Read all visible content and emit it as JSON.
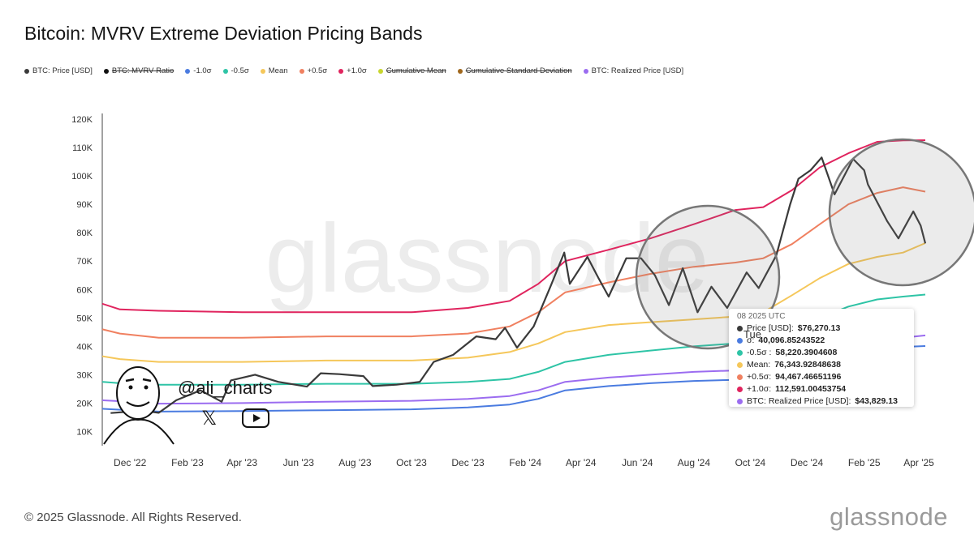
{
  "title": "Bitcoin: MVRV Extreme Deviation Pricing Bands",
  "legend": [
    {
      "label": "BTC: Price [USD]",
      "color": "#3a3a3a",
      "enabled": true
    },
    {
      "label": "BTC: MVRV Ratio",
      "color": "#111111",
      "enabled": false
    },
    {
      "label": "-1.0σ",
      "color": "#4a7be0",
      "enabled": true
    },
    {
      "label": "-0.5σ",
      "color": "#2ec4a6",
      "enabled": true
    },
    {
      "label": "Mean",
      "color": "#f5c75a",
      "enabled": true
    },
    {
      "label": "+0.5σ",
      "color": "#f08060",
      "enabled": true
    },
    {
      "label": "+1.0σ",
      "color": "#e0245e",
      "enabled": true
    },
    {
      "label": "Cumulative Mean",
      "color": "#c8d62e",
      "enabled": false
    },
    {
      "label": "Cumulative Standard Deviation",
      "color": "#a0671c",
      "enabled": false
    },
    {
      "label": "BTC: Realized Price [USD]",
      "color": "#9b6cf0",
      "enabled": true
    }
  ],
  "tooltip": {
    "date": "08 2025 UTC",
    "day": "Tue",
    "rows": [
      {
        "label": "Price [USD]:",
        "value": "$76,270.13",
        "color": "#3a3a3a"
      },
      {
        "label": "σ:",
        "value": "40,096.85243522",
        "color": "#4a7be0"
      },
      {
        "label": "-0.5σ :",
        "value": "58,220.3904608",
        "color": "#2ec4a6"
      },
      {
        "label": "Mean:",
        "value": "76,343.92848638",
        "color": "#f5c75a"
      },
      {
        "label": "+0.5σ:",
        "value": "94,467.46651196",
        "color": "#f08060"
      },
      {
        "label": "+1.0σ:",
        "value": "112,591.00453754",
        "color": "#e0245e"
      },
      {
        "label": "BTC: Realized Price [USD]:",
        "value": "$43,829.13",
        "color": "#9b6cf0"
      }
    ]
  },
  "watermark": "glassnode",
  "handle": "@ali_charts",
  "footer": {
    "copyright": "© 2025 Glassnode. All Rights Reserved.",
    "logo": "glassnode"
  },
  "chart_data": {
    "type": "line",
    "title": "Bitcoin: MVRV Extreme Deviation Pricing Bands",
    "ylim": [
      5000,
      122000
    ],
    "y_ticks": [
      "10K",
      "20K",
      "30K",
      "40K",
      "50K",
      "60K",
      "70K",
      "80K",
      "90K",
      "100K",
      "110K",
      "120K"
    ],
    "y_tick_values": [
      10000,
      20000,
      30000,
      40000,
      50000,
      60000,
      70000,
      80000,
      90000,
      100000,
      110000,
      120000
    ],
    "x_ticks": [
      "Dec '22",
      "Feb '23",
      "Apr '23",
      "Jun '23",
      "Aug '23",
      "Oct '23",
      "Dec '23",
      "Feb '24",
      "Apr '24",
      "Jun '24",
      "Aug '24",
      "Oct '24",
      "Dec '24",
      "Feb '25",
      "Apr '25"
    ],
    "x_tick_dates": [
      "2022-12-01",
      "2023-02-01",
      "2023-04-01",
      "2023-06-01",
      "2023-08-01",
      "2023-10-01",
      "2023-12-01",
      "2024-02-01",
      "2024-04-01",
      "2024-06-01",
      "2024-08-01",
      "2024-10-01",
      "2024-12-01",
      "2025-02-01",
      "2025-04-01"
    ],
    "xlim": [
      "2022-11-01",
      "2025-04-08"
    ],
    "grid": false,
    "series": [
      {
        "name": "+1.0σ",
        "color": "#e0245e",
        "points": [
          [
            "2022-11-01",
            55000
          ],
          [
            "2022-11-20",
            53000
          ],
          [
            "2023-01-01",
            52500
          ],
          [
            "2023-04-01",
            52000
          ],
          [
            "2023-07-01",
            52000
          ],
          [
            "2023-10-01",
            52000
          ],
          [
            "2023-12-01",
            53500
          ],
          [
            "2024-01-15",
            56000
          ],
          [
            "2024-02-15",
            62000
          ],
          [
            "2024-03-15",
            70000
          ],
          [
            "2024-05-01",
            74000
          ],
          [
            "2024-06-15",
            78000
          ],
          [
            "2024-08-01",
            83000
          ],
          [
            "2024-09-15",
            88000
          ],
          [
            "2024-10-15",
            89000
          ],
          [
            "2024-11-15",
            95000
          ],
          [
            "2024-12-15",
            103000
          ],
          [
            "2025-01-15",
            108000
          ],
          [
            "2025-02-15",
            112000
          ],
          [
            "2025-03-15",
            112500
          ],
          [
            "2025-04-08",
            112591
          ]
        ]
      },
      {
        "name": "+0.5σ",
        "color": "#f08060",
        "points": [
          [
            "2022-11-01",
            46000
          ],
          [
            "2022-11-20",
            44500
          ],
          [
            "2023-01-01",
            43000
          ],
          [
            "2023-04-01",
            43000
          ],
          [
            "2023-07-01",
            43500
          ],
          [
            "2023-10-01",
            43500
          ],
          [
            "2023-12-01",
            44500
          ],
          [
            "2024-01-15",
            47000
          ],
          [
            "2024-02-15",
            52000
          ],
          [
            "2024-03-15",
            59000
          ],
          [
            "2024-05-01",
            62500
          ],
          [
            "2024-06-15",
            65500
          ],
          [
            "2024-08-01",
            68000
          ],
          [
            "2024-09-15",
            69500
          ],
          [
            "2024-10-15",
            71000
          ],
          [
            "2024-11-15",
            76000
          ],
          [
            "2024-12-15",
            83000
          ],
          [
            "2025-01-15",
            90000
          ],
          [
            "2025-02-15",
            94000
          ],
          [
            "2025-03-15",
            96000
          ],
          [
            "2025-04-08",
            94467
          ]
        ]
      },
      {
        "name": "Mean",
        "color": "#f5c75a",
        "points": [
          [
            "2022-11-01",
            36500
          ],
          [
            "2022-11-20",
            35500
          ],
          [
            "2023-01-01",
            34500
          ],
          [
            "2023-04-01",
            34500
          ],
          [
            "2023-07-01",
            35000
          ],
          [
            "2023-10-01",
            35000
          ],
          [
            "2023-12-01",
            36000
          ],
          [
            "2024-01-15",
            38000
          ],
          [
            "2024-02-15",
            41000
          ],
          [
            "2024-03-15",
            45000
          ],
          [
            "2024-05-01",
            47500
          ],
          [
            "2024-06-15",
            48500
          ],
          [
            "2024-08-01",
            49500
          ],
          [
            "2024-09-15",
            50500
          ],
          [
            "2024-10-15",
            52000
          ],
          [
            "2024-11-15",
            58000
          ],
          [
            "2024-12-15",
            64000
          ],
          [
            "2025-01-15",
            69000
          ],
          [
            "2025-02-15",
            71500
          ],
          [
            "2025-03-15",
            73000
          ],
          [
            "2025-04-08",
            76343
          ]
        ]
      },
      {
        "name": "-0.5σ",
        "color": "#2ec4a6",
        "points": [
          [
            "2022-11-01",
            27500
          ],
          [
            "2022-11-20",
            27000
          ],
          [
            "2023-01-01",
            26500
          ],
          [
            "2023-04-01",
            26500
          ],
          [
            "2023-07-01",
            26800
          ],
          [
            "2023-10-01",
            26800
          ],
          [
            "2023-12-01",
            27500
          ],
          [
            "2024-01-15",
            28500
          ],
          [
            "2024-02-15",
            31000
          ],
          [
            "2024-03-15",
            34500
          ],
          [
            "2024-05-01",
            37000
          ],
          [
            "2024-06-15",
            38500
          ],
          [
            "2024-08-01",
            40000
          ],
          [
            "2024-09-15",
            41000
          ],
          [
            "2024-10-15",
            42500
          ],
          [
            "2024-11-15",
            46000
          ],
          [
            "2024-12-15",
            50000
          ],
          [
            "2025-01-15",
            54000
          ],
          [
            "2025-02-15",
            56500
          ],
          [
            "2025-03-15",
            57500
          ],
          [
            "2025-04-08",
            58220
          ]
        ]
      },
      {
        "name": "BTC: Realized Price [USD]",
        "color": "#9b6cf0",
        "points": [
          [
            "2022-11-01",
            21000
          ],
          [
            "2022-12-01",
            20500
          ],
          [
            "2023-01-01",
            19800
          ],
          [
            "2023-04-01",
            20000
          ],
          [
            "2023-07-01",
            20500
          ],
          [
            "2023-10-01",
            20800
          ],
          [
            "2023-12-01",
            21500
          ],
          [
            "2024-01-15",
            22500
          ],
          [
            "2024-02-15",
            24500
          ],
          [
            "2024-03-15",
            27500
          ],
          [
            "2024-05-01",
            29000
          ],
          [
            "2024-06-15",
            30000
          ],
          [
            "2024-08-01",
            31000
          ],
          [
            "2024-09-15",
            31500
          ],
          [
            "2024-10-15",
            32000
          ],
          [
            "2024-11-15",
            35000
          ],
          [
            "2024-12-15",
            38500
          ],
          [
            "2025-01-15",
            41000
          ],
          [
            "2025-02-15",
            42500
          ],
          [
            "2025-03-15",
            43000
          ],
          [
            "2025-04-08",
            43829
          ]
        ]
      },
      {
        "name": "-1.0σ",
        "color": "#4a7be0",
        "points": [
          [
            "2022-11-01",
            18000
          ],
          [
            "2022-12-01",
            17500
          ],
          [
            "2023-01-01",
            17000
          ],
          [
            "2023-04-01",
            17200
          ],
          [
            "2023-07-01",
            17500
          ],
          [
            "2023-10-01",
            17800
          ],
          [
            "2023-12-01",
            18500
          ],
          [
            "2024-01-15",
            19500
          ],
          [
            "2024-02-15",
            21500
          ],
          [
            "2024-03-15",
            24500
          ],
          [
            "2024-05-01",
            26000
          ],
          [
            "2024-06-15",
            27000
          ],
          [
            "2024-08-01",
            27800
          ],
          [
            "2024-09-15",
            28200
          ],
          [
            "2024-10-15",
            28500
          ],
          [
            "2024-11-15",
            31000
          ],
          [
            "2024-12-15",
            34500
          ],
          [
            "2025-01-15",
            37500
          ],
          [
            "2025-02-15",
            39000
          ],
          [
            "2025-03-15",
            39800
          ],
          [
            "2025-04-08",
            40096
          ]
        ]
      },
      {
        "name": "BTC: Price [USD]",
        "color": "#3a3a3a",
        "points": [
          [
            "2022-11-10",
            16500
          ],
          [
            "2022-12-01",
            17000
          ],
          [
            "2022-12-15",
            17300
          ],
          [
            "2023-01-01",
            16600
          ],
          [
            "2023-01-20",
            21000
          ],
          [
            "2023-02-15",
            24500
          ],
          [
            "2023-03-10",
            20500
          ],
          [
            "2023-03-20",
            28000
          ],
          [
            "2023-04-15",
            30000
          ],
          [
            "2023-05-10",
            27500
          ],
          [
            "2023-06-10",
            25800
          ],
          [
            "2023-06-25",
            30500
          ],
          [
            "2023-07-15",
            30200
          ],
          [
            "2023-08-10",
            29500
          ],
          [
            "2023-08-20",
            26000
          ],
          [
            "2023-09-15",
            26500
          ],
          [
            "2023-10-10",
            27500
          ],
          [
            "2023-10-25",
            34500
          ],
          [
            "2023-11-15",
            37000
          ],
          [
            "2023-12-10",
            43500
          ],
          [
            "2023-12-31",
            42500
          ],
          [
            "2024-01-10",
            46500
          ],
          [
            "2024-01-23",
            39500
          ],
          [
            "2024-02-10",
            47000
          ],
          [
            "2024-02-28",
            61000
          ],
          [
            "2024-03-14",
            73000
          ],
          [
            "2024-03-20",
            62000
          ],
          [
            "2024-04-08",
            71500
          ],
          [
            "2024-04-20",
            64000
          ],
          [
            "2024-05-01",
            57500
          ],
          [
            "2024-05-20",
            71000
          ],
          [
            "2024-06-05",
            71000
          ],
          [
            "2024-06-20",
            65000
          ],
          [
            "2024-07-05",
            54500
          ],
          [
            "2024-07-20",
            67500
          ],
          [
            "2024-08-05",
            52000
          ],
          [
            "2024-08-20",
            61000
          ],
          [
            "2024-09-06",
            53500
          ],
          [
            "2024-09-27",
            66000
          ],
          [
            "2024-10-10",
            60500
          ],
          [
            "2024-10-29",
            72000
          ],
          [
            "2024-11-13",
            90000
          ],
          [
            "2024-11-22",
            99000
          ],
          [
            "2024-12-05",
            102000
          ],
          [
            "2024-12-17",
            106500
          ],
          [
            "2024-12-31",
            93500
          ],
          [
            "2025-01-20",
            106000
          ],
          [
            "2025-02-01",
            102000
          ],
          [
            "2025-02-05",
            97000
          ],
          [
            "2025-02-26",
            84000
          ],
          [
            "2025-03-10",
            78000
          ],
          [
            "2025-03-26",
            87500
          ],
          [
            "2025-04-03",
            82500
          ],
          [
            "2025-04-08",
            76270
          ]
        ]
      }
    ]
  }
}
